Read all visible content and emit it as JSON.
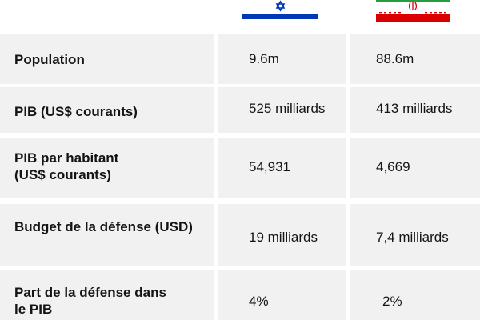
{
  "chart_data": {
    "type": "table",
    "columns": [
      {
        "flag": "israel-flag-icon"
      },
      {
        "flag": "iran-flag-icon"
      }
    ],
    "rows": [
      {
        "label_lines": [
          "Population"
        ],
        "values": [
          "9.6m",
          "88.6m"
        ]
      },
      {
        "label_lines": [
          "PIB (US$ courants)"
        ],
        "values": [
          "525 milliards",
          "413 milliards"
        ]
      },
      {
        "label_lines": [
          "PIB par habitant",
          "(US$ courants)"
        ],
        "values": [
          "54,931",
          "4,669"
        ]
      },
      {
        "label_lines": [
          "Budget de la défense (USD)"
        ],
        "values": [
          "19 milliards",
          "7,4 milliards"
        ]
      },
      {
        "label_lines": [
          "Part de la défense dans",
          "le PIB"
        ],
        "values": [
          "4%",
          "2%"
        ]
      }
    ]
  },
  "colors": {
    "row_background": "#f1f1f1",
    "israel_blue": "#0038b8",
    "iran_green": "#239f40",
    "iran_red": "#da0000"
  }
}
